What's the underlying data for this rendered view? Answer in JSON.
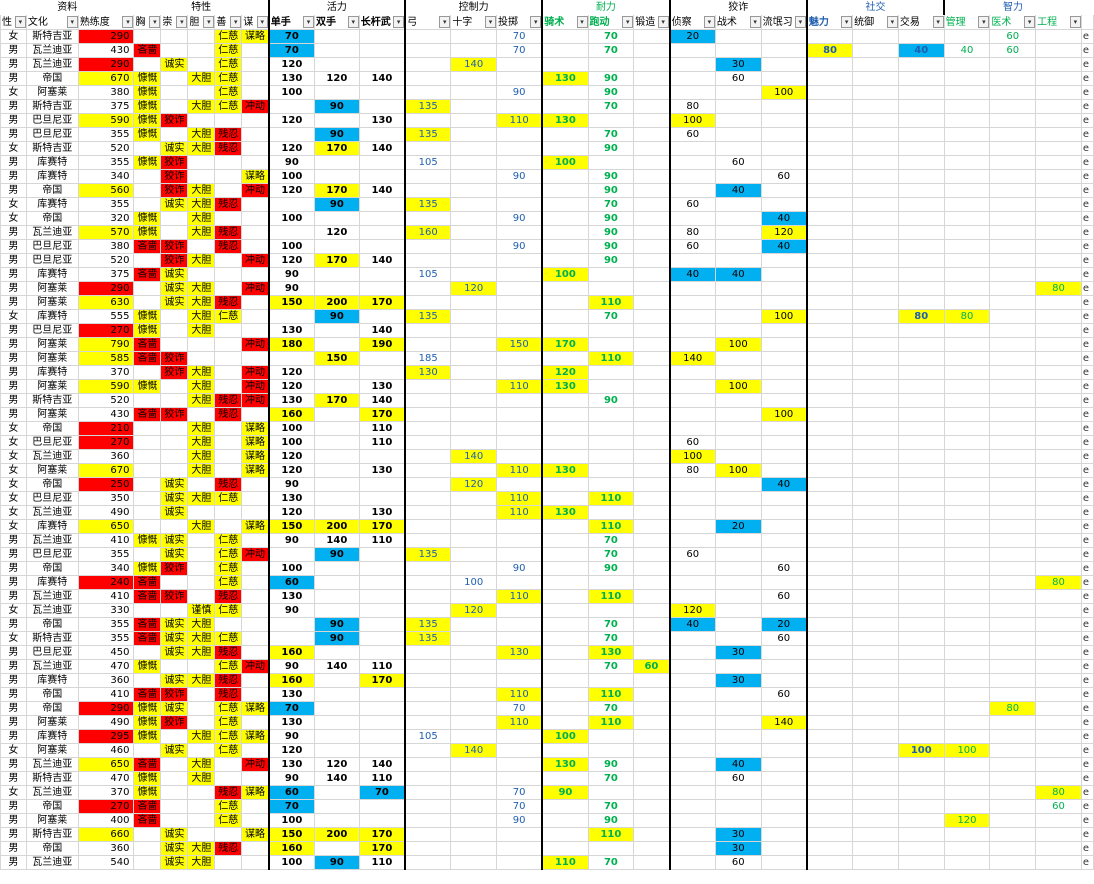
{
  "groups": [
    "资料",
    "特性",
    "活力",
    "控制力",
    "耐力",
    "狡诈",
    "社交",
    "智力"
  ],
  "headers": [
    "性",
    "文化",
    "熟练度",
    "胸",
    "崇",
    "胆",
    "善",
    "谋",
    "单手",
    "双手",
    "长杆武",
    "弓",
    "十字",
    "投掷",
    "骑术",
    "跑动",
    "锻造",
    "侦察",
    "战术",
    "流氓习",
    "魅力",
    "统御",
    "交易",
    "管理",
    "医术",
    "工程"
  ],
  "rows": [
    [
      "女",
      "斯特吉亚",
      "290",
      "",
      "",
      "",
      "仁慈",
      "谋略",
      "70",
      "",
      "",
      "",
      "",
      "70",
      "",
      "70",
      "",
      "20",
      "",
      "",
      "",
      "",
      "",
      "",
      "60",
      ""
    ],
    [
      "男",
      "瓦兰迪亚",
      "430",
      "吝啬",
      "",
      "",
      "仁慈",
      "",
      "70",
      "",
      "",
      "",
      "",
      "70",
      "",
      "70",
      "",
      "",
      "",
      "",
      "80",
      "",
      "40",
      "40",
      "60",
      ""
    ],
    [
      "男",
      "瓦兰迪亚",
      "290",
      "",
      "诚实",
      "",
      "仁慈",
      "",
      "120",
      "",
      "",
      "",
      "140",
      "",
      "",
      "",
      "",
      "",
      "30",
      "",
      "",
      "",
      "",
      "",
      "",
      ""
    ],
    [
      "男",
      "帝国",
      "670",
      "慷慨",
      "",
      "大胆",
      "仁慈",
      "",
      "130",
      "120",
      "140",
      "",
      "",
      "",
      "130",
      "90",
      "",
      "",
      "60",
      "",
      "",
      "",
      "",
      "",
      "",
      ""
    ],
    [
      "女",
      "阿塞莱",
      "380",
      "慷慨",
      "",
      "",
      "仁慈",
      "",
      "100",
      "",
      "",
      "",
      "",
      "90",
      "",
      "90",
      "",
      "",
      "",
      "100",
      "",
      "",
      "",
      "",
      "",
      ""
    ],
    [
      "男",
      "斯特吉亚",
      "375",
      "慷慨",
      "",
      "大胆",
      "仁慈",
      "冲动",
      "",
      "90",
      "",
      "135",
      "",
      "",
      "",
      "70",
      "",
      "80",
      "",
      "",
      "",
      "",
      "",
      "",
      "",
      ""
    ],
    [
      "男",
      "巴旦尼亚",
      "590",
      "慷慨",
      "狡诈",
      "",
      "",
      "",
      "120",
      "",
      "130",
      "",
      "",
      "110",
      "130",
      "",
      "",
      "100",
      "",
      "",
      "",
      "",
      "",
      "",
      "",
      ""
    ],
    [
      "男",
      "巴旦尼亚",
      "355",
      "慷慨",
      "",
      "大胆",
      "残忍",
      "",
      "",
      "90",
      "",
      "135",
      "",
      "",
      "",
      "70",
      "",
      "60",
      "",
      "",
      "",
      "",
      "",
      "",
      "",
      ""
    ],
    [
      "女",
      "斯特吉亚",
      "520",
      "",
      "诚实",
      "大胆",
      "残忍",
      "",
      "120",
      "170",
      "140",
      "",
      "",
      "",
      "",
      "90",
      "",
      "",
      "",
      "",
      "",
      "",
      "",
      "",
      "",
      ""
    ],
    [
      "男",
      "库赛特",
      "355",
      "慷慨",
      "狡诈",
      "",
      "",
      "",
      "90",
      "",
      "",
      "105",
      "",
      "",
      "100",
      "",
      "",
      "",
      "60",
      "",
      "",
      "",
      "",
      "",
      "",
      ""
    ],
    [
      "男",
      "库赛特",
      "340",
      "",
      "狡诈",
      "",
      "",
      "谋略",
      "100",
      "",
      "",
      "",
      "",
      "90",
      "",
      "90",
      "",
      "",
      "",
      "60",
      "",
      "",
      "",
      "",
      "",
      ""
    ],
    [
      "男",
      "帝国",
      "560",
      "",
      "狡诈",
      "大胆",
      "",
      "冲动",
      "120",
      "170",
      "140",
      "",
      "",
      "",
      "",
      "90",
      "",
      "",
      "40",
      "",
      "",
      "",
      "",
      "",
      "",
      ""
    ],
    [
      "女",
      "库赛特",
      "355",
      "",
      "诚实",
      "大胆",
      "残忍",
      "",
      "",
      "90",
      "",
      "135",
      "",
      "",
      "",
      "70",
      "",
      "60",
      "",
      "",
      "",
      "",
      "",
      "",
      "",
      ""
    ],
    [
      "女",
      "帝国",
      "320",
      "慷慨",
      "",
      "大胆",
      "",
      "",
      "100",
      "",
      "",
      "",
      "",
      "90",
      "",
      "90",
      "",
      "",
      "",
      "40",
      "",
      "",
      "",
      "",
      "",
      ""
    ],
    [
      "男",
      "瓦兰迪亚",
      "570",
      "慷慨",
      "",
      "大胆",
      "残忍",
      "",
      "",
      "120",
      "",
      "160",
      "",
      "",
      "",
      "90",
      "",
      "80",
      "",
      "120",
      "",
      "",
      "",
      "",
      "",
      ""
    ],
    [
      "男",
      "巴旦尼亚",
      "380",
      "吝啬",
      "狡诈",
      "",
      "残忍",
      "",
      "100",
      "",
      "",
      "",
      "",
      "90",
      "",
      "90",
      "",
      "60",
      "",
      "40",
      "",
      "",
      "",
      "",
      "",
      ""
    ],
    [
      "男",
      "巴旦尼亚",
      "520",
      "",
      "狡诈",
      "大胆",
      "",
      "冲动",
      "120",
      "170",
      "140",
      "",
      "",
      "",
      "",
      "90",
      "",
      "",
      "",
      "",
      "",
      "",
      "",
      "",
      "",
      ""
    ],
    [
      "男",
      "库赛特",
      "375",
      "吝啬",
      "诚实",
      "",
      "",
      "",
      "90",
      "",
      "",
      "105",
      "",
      "",
      "100",
      "",
      "",
      "40",
      "40",
      "",
      "",
      "",
      "",
      "",
      "",
      ""
    ],
    [
      "男",
      "阿塞莱",
      "290",
      "",
      "诚实",
      "大胆",
      "",
      "冲动",
      "90",
      "",
      "",
      "",
      "120",
      "",
      "",
      "",
      "",
      "",
      "",
      "",
      "",
      "",
      "",
      "",
      "",
      "80"
    ],
    [
      "男",
      "阿塞莱",
      "630",
      "",
      "诚实",
      "大胆",
      "残忍",
      "",
      "150",
      "200",
      "170",
      "",
      "",
      "",
      "",
      "110",
      "",
      "",
      "",
      "",
      "",
      "",
      "",
      "",
      "",
      ""
    ],
    [
      "女",
      "库赛特",
      "555",
      "慷慨",
      "",
      "大胆",
      "仁慈",
      "",
      "",
      "90",
      "",
      "135",
      "",
      "",
      "",
      "70",
      "",
      "",
      "",
      "100",
      "",
      "",
      "80",
      "80",
      "",
      ""
    ],
    [
      "男",
      "巴旦尼亚",
      "270",
      "慷慨",
      "",
      "大胆",
      "",
      "",
      "130",
      "",
      "140",
      "",
      "",
      "",
      "",
      "",
      "",
      "",
      "",
      "",
      "",
      "",
      "",
      "",
      "",
      ""
    ],
    [
      "男",
      "阿塞莱",
      "790",
      "吝啬",
      "",
      "",
      "",
      "冲动",
      "180",
      "",
      "190",
      "",
      "",
      "150",
      "170",
      "",
      "",
      "",
      "100",
      "",
      "",
      "",
      "",
      "",
      "",
      ""
    ],
    [
      "男",
      "阿塞莱",
      "585",
      "吝啬",
      "狡诈",
      "",
      "",
      "",
      "",
      "150",
      "",
      "185",
      "",
      "",
      "",
      "110",
      "",
      "140",
      "",
      "",
      "",
      "",
      "",
      "",
      "",
      ""
    ],
    [
      "男",
      "库赛特",
      "370",
      "",
      "狡诈",
      "大胆",
      "",
      "冲动",
      "120",
      "",
      "",
      "130",
      "",
      "",
      "120",
      "",
      "",
      "",
      "",
      "",
      "",
      "",
      "",
      "",
      "",
      ""
    ],
    [
      "男",
      "阿塞莱",
      "590",
      "慷慨",
      "",
      "大胆",
      "",
      "冲动",
      "120",
      "",
      "130",
      "",
      "",
      "110",
      "130",
      "",
      "",
      "",
      "100",
      "",
      "",
      "",
      "",
      "",
      "",
      ""
    ],
    [
      "男",
      "斯特吉亚",
      "520",
      "",
      "",
      "大胆",
      "残忍",
      "冲动",
      "130",
      "170",
      "140",
      "",
      "",
      "",
      "",
      "90",
      "",
      "",
      "",
      "",
      "",
      "",
      "",
      "",
      "",
      ""
    ],
    [
      "男",
      "阿塞莱",
      "430",
      "吝啬",
      "狡诈",
      "",
      "残忍",
      "",
      "160",
      "",
      "170",
      "",
      "",
      "",
      "",
      "",
      "",
      "",
      "",
      "100",
      "",
      "",
      "",
      "",
      "",
      ""
    ],
    [
      "女",
      "帝国",
      "210",
      "",
      "",
      "大胆",
      "",
      "谋略",
      "100",
      "",
      "110",
      "",
      "",
      "",
      "",
      "",
      "",
      "",
      "",
      "",
      "",
      "",
      "",
      "",
      "",
      ""
    ],
    [
      "女",
      "巴旦尼亚",
      "270",
      "",
      "",
      "大胆",
      "",
      "谋略",
      "100",
      "",
      "110",
      "",
      "",
      "",
      "",
      "",
      "",
      "60",
      "",
      "",
      "",
      "",
      "",
      "",
      "",
      ""
    ],
    [
      "女",
      "瓦兰迪亚",
      "360",
      "",
      "",
      "大胆",
      "",
      "谋略",
      "120",
      "",
      "",
      "",
      "140",
      "",
      "",
      "",
      "",
      "100",
      "",
      "",
      "",
      "",
      "",
      "",
      "",
      ""
    ],
    [
      "女",
      "阿塞莱",
      "670",
      "",
      "",
      "大胆",
      "",
      "谋略",
      "120",
      "",
      "130",
      "",
      "",
      "110",
      "130",
      "",
      "",
      "80",
      "100",
      "",
      "",
      "",
      "",
      "",
      "",
      ""
    ],
    [
      "女",
      "帝国",
      "250",
      "",
      "诚实",
      "",
      "残忍",
      "",
      "90",
      "",
      "",
      "",
      "120",
      "",
      "",
      "",
      "",
      "",
      "",
      "40",
      "",
      "",
      "",
      "",
      "",
      ""
    ],
    [
      "女",
      "巴旦尼亚",
      "350",
      "",
      "诚实",
      "大胆",
      "仁慈",
      "",
      "130",
      "",
      "",
      "",
      "",
      "110",
      "",
      "110",
      "",
      "",
      "",
      "",
      "",
      "",
      "",
      "",
      "",
      ""
    ],
    [
      "女",
      "瓦兰迪亚",
      "490",
      "",
      "诚实",
      "",
      "",
      "",
      "120",
      "",
      "130",
      "",
      "",
      "110",
      "130",
      "",
      "",
      "",
      "",
      "",
      "",
      "",
      "",
      "",
      "",
      ""
    ],
    [
      "女",
      "库赛特",
      "650",
      "",
      "",
      "大胆",
      "",
      "谋略",
      "150",
      "200",
      "170",
      "",
      "",
      "",
      "",
      "110",
      "",
      "",
      "20",
      "",
      "",
      "",
      "",
      "",
      "",
      ""
    ],
    [
      "男",
      "瓦兰迪亚",
      "410",
      "慷慨",
      "诚实",
      "",
      "仁慈",
      "",
      "90",
      "140",
      "110",
      "",
      "",
      "",
      "",
      "70",
      "",
      "",
      "",
      "",
      "",
      "",
      "",
      "",
      "",
      ""
    ],
    [
      "男",
      "巴旦尼亚",
      "355",
      "",
      "诚实",
      "",
      "仁慈",
      "冲动",
      "",
      "90",
      "",
      "135",
      "",
      "",
      "",
      "70",
      "",
      "60",
      "",
      "",
      "",
      "",
      "",
      "",
      "",
      ""
    ],
    [
      "男",
      "帝国",
      "340",
      "慷慨",
      "狡诈",
      "",
      "仁慈",
      "",
      "100",
      "",
      "",
      "",
      "",
      "90",
      "",
      "90",
      "",
      "",
      "",
      "60",
      "",
      "",
      "",
      "",
      "",
      ""
    ],
    [
      "男",
      "库赛特",
      "240",
      "吝啬",
      "",
      "",
      "仁慈",
      "",
      "60",
      "",
      "",
      "",
      "100",
      "",
      "",
      "",
      "",
      "",
      "",
      "",
      "",
      "",
      "",
      "",
      "",
      "80"
    ],
    [
      "男",
      "瓦兰迪亚",
      "410",
      "吝啬",
      "狡诈",
      "",
      "残忍",
      "",
      "130",
      "",
      "",
      "",
      "",
      "110",
      "",
      "110",
      "",
      "",
      "",
      "60",
      "",
      "",
      "",
      "",
      "",
      ""
    ],
    [
      "女",
      "瓦兰迪亚",
      "330",
      "",
      "",
      "谨慎",
      "仁慈",
      "",
      "90",
      "",
      "",
      "",
      "120",
      "",
      "",
      "",
      "",
      "120",
      "",
      "",
      "",
      "",
      "",
      "",
      "",
      ""
    ],
    [
      "男",
      "帝国",
      "355",
      "吝啬",
      "诚实",
      "大胆",
      "",
      "",
      "",
      "90",
      "",
      "135",
      "",
      "",
      "",
      "70",
      "",
      "40",
      "",
      "20",
      "",
      "",
      "",
      "",
      "",
      ""
    ],
    [
      "女",
      "斯特吉亚",
      "355",
      "吝啬",
      "诚实",
      "大胆",
      "仁慈",
      "",
      "",
      "90",
      "",
      "135",
      "",
      "",
      "",
      "70",
      "",
      "",
      "",
      "60",
      "",
      "",
      "",
      "",
      "",
      ""
    ],
    [
      "男",
      "巴旦尼亚",
      "450",
      "",
      "诚实",
      "大胆",
      "残忍",
      "",
      "160",
      "",
      "",
      "",
      "",
      "130",
      "",
      "130",
      "",
      "",
      "30",
      "",
      "",
      "",
      "",
      "",
      "",
      ""
    ],
    [
      "男",
      "瓦兰迪亚",
      "470",
      "慷慨",
      "",
      "",
      "仁慈",
      "冲动",
      "90",
      "140",
      "110",
      "",
      "",
      "",
      "",
      "70",
      "60",
      "",
      "",
      "",
      "",
      "",
      "",
      "",
      "",
      ""
    ],
    [
      "男",
      "库赛特",
      "360",
      "",
      "诚实",
      "大胆",
      "残忍",
      "",
      "160",
      "",
      "170",
      "",
      "",
      "",
      "",
      "",
      "",
      "",
      "30",
      "",
      "",
      "",
      "",
      "",
      "",
      ""
    ],
    [
      "男",
      "帝国",
      "410",
      "吝啬",
      "狡诈",
      "",
      "残忍",
      "",
      "130",
      "",
      "",
      "",
      "",
      "110",
      "",
      "110",
      "",
      "",
      "",
      "60",
      "",
      "",
      "",
      "",
      "",
      ""
    ],
    [
      "男",
      "帝国",
      "290",
      "慷慨",
      "诚实",
      "",
      "仁慈",
      "谋略",
      "70",
      "",
      "",
      "",
      "",
      "70",
      "",
      "70",
      "",
      "",
      "",
      "",
      "",
      "",
      "",
      "",
      "80",
      ""
    ],
    [
      "男",
      "阿塞莱",
      "490",
      "慷慨",
      "狡诈",
      "",
      "仁慈",
      "",
      "130",
      "",
      "",
      "",
      "",
      "110",
      "",
      "110",
      "",
      "",
      "",
      "140",
      "",
      "",
      "",
      "",
      "",
      ""
    ],
    [
      "男",
      "库赛特",
      "295",
      "慷慨",
      "",
      "大胆",
      "仁慈",
      "谋略",
      "90",
      "",
      "",
      "105",
      "",
      "",
      "100",
      "",
      "",
      "",
      "",
      "",
      "",
      "",
      "",
      "",
      "",
      ""
    ],
    [
      "女",
      "阿塞莱",
      "460",
      "",
      "诚实",
      "",
      "仁慈",
      "",
      "120",
      "",
      "",
      "",
      "140",
      "",
      "",
      "",
      "",
      "",
      "",
      "",
      "",
      "",
      "100",
      "100",
      "",
      ""
    ],
    [
      "男",
      "瓦兰迪亚",
      "650",
      "吝啬",
      "",
      "大胆",
      "",
      "冲动",
      "130",
      "120",
      "140",
      "",
      "",
      "",
      "130",
      "90",
      "",
      "",
      "40",
      "",
      "",
      "",
      "",
      "",
      "",
      ""
    ],
    [
      "男",
      "斯特吉亚",
      "470",
      "慷慨",
      "",
      "大胆",
      "",
      "",
      "90",
      "140",
      "110",
      "",
      "",
      "",
      "",
      "70",
      "",
      "",
      "60",
      "",
      "",
      "",
      "",
      "",
      "",
      ""
    ],
    [
      "女",
      "瓦兰迪亚",
      "370",
      "慷慨",
      "",
      "",
      "残忍",
      "谋略",
      "60",
      "",
      "70",
      "",
      "",
      "70",
      "90",
      "",
      "",
      "",
      "",
      "",
      "",
      "",
      "",
      "",
      "",
      "80"
    ],
    [
      "男",
      "帝国",
      "270",
      "吝啬",
      "",
      "",
      "仁慈",
      "",
      "70",
      "",
      "",
      "",
      "",
      "70",
      "",
      "70",
      "",
      "",
      "",
      "",
      "",
      "",
      "",
      "",
      "",
      "60"
    ],
    [
      "男",
      "阿塞莱",
      "400",
      "吝啬",
      "",
      "",
      "仁慈",
      "",
      "100",
      "",
      "",
      "",
      "",
      "90",
      "",
      "90",
      "",
      "",
      "",
      "",
      "",
      "",
      "",
      "120",
      "",
      ""
    ],
    [
      "男",
      "斯特吉亚",
      "660",
      "",
      "诚实",
      "",
      "",
      "谋略",
      "150",
      "200",
      "170",
      "",
      "",
      "",
      "",
      "110",
      "",
      "",
      "30",
      "",
      "",
      "",
      "",
      "",
      "",
      ""
    ],
    [
      "男",
      "帝国",
      "360",
      "",
      "诚实",
      "大胆",
      "残忍",
      "",
      "160",
      "",
      "170",
      "",
      "",
      "",
      "",
      "",
      "",
      "",
      "30",
      "",
      "",
      "",
      "",
      "",
      "",
      ""
    ],
    [
      "男",
      "瓦兰迪亚",
      "540",
      "",
      "诚实",
      "大胆",
      "",
      "",
      "100",
      "90",
      "110",
      "",
      "",
      "",
      "110",
      "70",
      "",
      "",
      "60",
      "",
      "",
      "",
      "",
      "",
      "",
      ""
    ]
  ],
  "colors": {
    "red": "#ff0000",
    "yellow": "#ffff00",
    "blue": "#00b0f0"
  },
  "last_col_text": "e"
}
